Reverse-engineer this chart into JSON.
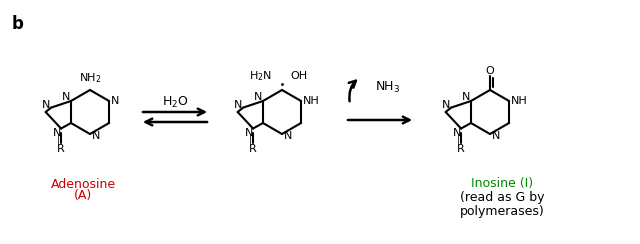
{
  "bg_color": "#ffffff",
  "label_b": "b",
  "adenosine_label": "Adenosine",
  "adenosine_A": "(A)",
  "adenosine_color": "#cc0000",
  "inosine_label": "Inosine (I)",
  "inosine_sub": "(read as G by\npolymerases)",
  "inosine_color": "#008800",
  "h2o_label": "H$_2$O",
  "nh3_label": "NH$_3$",
  "figsize": [
    6.4,
    2.44
  ],
  "dpi": 100
}
